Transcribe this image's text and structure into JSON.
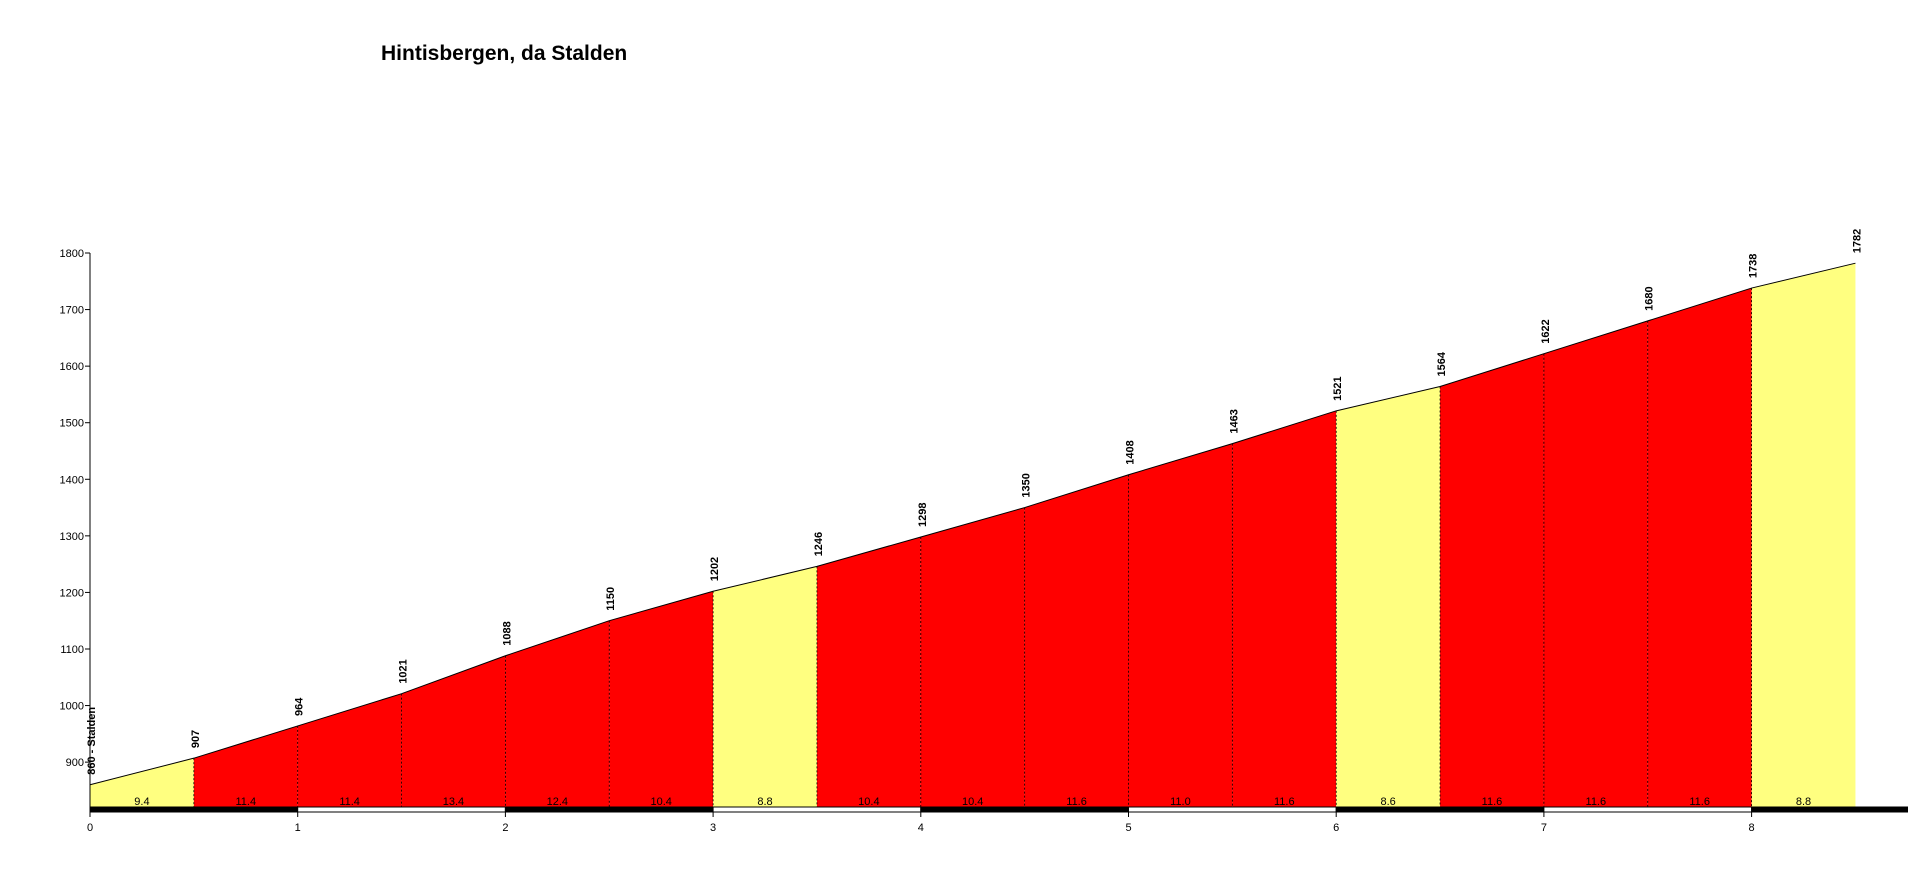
{
  "chart_data": {
    "type": "area",
    "title": "Hintisbergen, da Stalden",
    "xlabel": "",
    "ylabel": "",
    "xlim": [
      0,
      8.5
    ],
    "ylim": [
      810,
      1800
    ],
    "x_ticks": [
      0,
      1,
      2,
      3,
      4,
      5,
      6,
      7,
      8
    ],
    "y_ticks": [
      900,
      1000,
      1100,
      1200,
      1300,
      1400,
      1500,
      1600,
      1700,
      1800
    ],
    "start_label": "860 - Stalden",
    "points": [
      {
        "x": 0.0,
        "elevation": 860
      },
      {
        "x": 0.5,
        "elevation": 907
      },
      {
        "x": 1.0,
        "elevation": 964
      },
      {
        "x": 1.5,
        "elevation": 1021
      },
      {
        "x": 2.0,
        "elevation": 1088
      },
      {
        "x": 2.5,
        "elevation": 1150
      },
      {
        "x": 3.0,
        "elevation": 1202
      },
      {
        "x": 3.5,
        "elevation": 1246
      },
      {
        "x": 4.0,
        "elevation": 1298
      },
      {
        "x": 4.5,
        "elevation": 1350
      },
      {
        "x": 5.0,
        "elevation": 1408
      },
      {
        "x": 5.5,
        "elevation": 1463
      },
      {
        "x": 6.0,
        "elevation": 1521
      },
      {
        "x": 6.5,
        "elevation": 1564
      },
      {
        "x": 7.0,
        "elevation": 1622
      },
      {
        "x": 7.5,
        "elevation": 1680
      },
      {
        "x": 8.0,
        "elevation": 1738
      },
      {
        "x": 8.5,
        "elevation": 1782
      }
    ],
    "segments": [
      {
        "start": 0.0,
        "end": 0.5,
        "gradient": "9.4",
        "color": "#ffff80"
      },
      {
        "start": 0.5,
        "end": 1.0,
        "gradient": "11.4",
        "color": "#ff0000"
      },
      {
        "start": 1.0,
        "end": 1.5,
        "gradient": "11.4",
        "color": "#ff0000"
      },
      {
        "start": 1.5,
        "end": 2.0,
        "gradient": "13.4",
        "color": "#ff0000"
      },
      {
        "start": 2.0,
        "end": 2.5,
        "gradient": "12.4",
        "color": "#ff0000"
      },
      {
        "start": 2.5,
        "end": 3.0,
        "gradient": "10.4",
        "color": "#ff0000"
      },
      {
        "start": 3.0,
        "end": 3.5,
        "gradient": "8.8",
        "color": "#ffff80"
      },
      {
        "start": 3.5,
        "end": 4.0,
        "gradient": "10.4",
        "color": "#ff0000"
      },
      {
        "start": 4.0,
        "end": 4.5,
        "gradient": "10.4",
        "color": "#ff0000"
      },
      {
        "start": 4.5,
        "end": 5.0,
        "gradient": "11.6",
        "color": "#ff0000"
      },
      {
        "start": 5.0,
        "end": 5.5,
        "gradient": "11.0",
        "color": "#ff0000"
      },
      {
        "start": 5.5,
        "end": 6.0,
        "gradient": "11.6",
        "color": "#ff0000"
      },
      {
        "start": 6.0,
        "end": 6.5,
        "gradient": "8.6",
        "color": "#ffff80"
      },
      {
        "start": 6.5,
        "end": 7.0,
        "gradient": "11.6",
        "color": "#ff0000"
      },
      {
        "start": 7.0,
        "end": 7.5,
        "gradient": "11.6",
        "color": "#ff0000"
      },
      {
        "start": 7.5,
        "end": 8.0,
        "gradient": "11.6",
        "color": "#ff0000"
      },
      {
        "start": 8.0,
        "end": 8.5,
        "gradient": "8.8",
        "color": "#ffff80"
      }
    ],
    "km_bands": [
      {
        "start": 0,
        "end": 1,
        "color": "#000000"
      },
      {
        "start": 1,
        "end": 2,
        "color": "#ffffff"
      },
      {
        "start": 2,
        "end": 3,
        "color": "#000000"
      },
      {
        "start": 3,
        "end": 4,
        "color": "#ffffff"
      },
      {
        "start": 4,
        "end": 5,
        "color": "#000000"
      },
      {
        "start": 5,
        "end": 6,
        "color": "#ffffff"
      },
      {
        "start": 6,
        "end": 7,
        "color": "#000000"
      },
      {
        "start": 7,
        "end": 8,
        "color": "#ffffff"
      },
      {
        "start": 8,
        "end": 9,
        "color": "#000000"
      }
    ]
  }
}
